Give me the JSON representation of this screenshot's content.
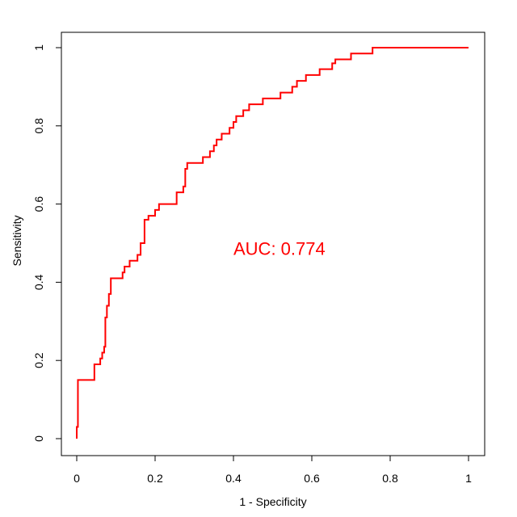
{
  "chart_data": {
    "type": "line",
    "title": "",
    "xlabel": "1 - Specificity",
    "ylabel": "Sensitivity",
    "xlim": [
      0,
      1
    ],
    "ylim": [
      0,
      1
    ],
    "x_ticks": [
      0,
      0.2,
      0.4,
      0.6,
      0.8,
      1
    ],
    "x_tick_labels": [
      "0",
      "0.2",
      "0.4",
      "0.6",
      "0.8",
      "1"
    ],
    "y_ticks": [
      0,
      0.2,
      0.4,
      0.6,
      0.8,
      1
    ],
    "y_tick_labels": [
      "0",
      "0.2",
      "0.4",
      "0.6",
      "0.8",
      "1"
    ],
    "grid": false,
    "line_color": "#ff0000",
    "annotation": {
      "text": "AUC: 0.774",
      "x": 0.4,
      "y": 0.47
    },
    "series": [
      {
        "color": "#ff0000",
        "step": true,
        "points": [
          [
            0,
            0
          ],
          [
            0,
            0.03
          ],
          [
            0.003,
            0.03
          ],
          [
            0.003,
            0.15
          ],
          [
            0.045,
            0.15
          ],
          [
            0.045,
            0.19
          ],
          [
            0.06,
            0.19
          ],
          [
            0.06,
            0.205
          ],
          [
            0.065,
            0.205
          ],
          [
            0.065,
            0.22
          ],
          [
            0.07,
            0.22
          ],
          [
            0.07,
            0.235
          ],
          [
            0.073,
            0.235
          ],
          [
            0.073,
            0.31
          ],
          [
            0.077,
            0.31
          ],
          [
            0.077,
            0.34
          ],
          [
            0.082,
            0.34
          ],
          [
            0.082,
            0.37
          ],
          [
            0.087,
            0.37
          ],
          [
            0.087,
            0.41
          ],
          [
            0.117,
            0.41
          ],
          [
            0.117,
            0.425
          ],
          [
            0.122,
            0.425
          ],
          [
            0.122,
            0.44
          ],
          [
            0.135,
            0.44
          ],
          [
            0.135,
            0.455
          ],
          [
            0.155,
            0.455
          ],
          [
            0.155,
            0.47
          ],
          [
            0.163,
            0.47
          ],
          [
            0.163,
            0.5
          ],
          [
            0.173,
            0.5
          ],
          [
            0.173,
            0.56
          ],
          [
            0.183,
            0.56
          ],
          [
            0.183,
            0.57
          ],
          [
            0.2,
            0.57
          ],
          [
            0.2,
            0.585
          ],
          [
            0.21,
            0.585
          ],
          [
            0.21,
            0.6
          ],
          [
            0.255,
            0.6
          ],
          [
            0.255,
            0.63
          ],
          [
            0.272,
            0.63
          ],
          [
            0.272,
            0.645
          ],
          [
            0.277,
            0.645
          ],
          [
            0.277,
            0.69
          ],
          [
            0.282,
            0.69
          ],
          [
            0.282,
            0.705
          ],
          [
            0.322,
            0.705
          ],
          [
            0.322,
            0.72
          ],
          [
            0.34,
            0.72
          ],
          [
            0.34,
            0.735
          ],
          [
            0.35,
            0.735
          ],
          [
            0.35,
            0.75
          ],
          [
            0.357,
            0.75
          ],
          [
            0.357,
            0.765
          ],
          [
            0.37,
            0.765
          ],
          [
            0.37,
            0.78
          ],
          [
            0.39,
            0.78
          ],
          [
            0.39,
            0.795
          ],
          [
            0.4,
            0.795
          ],
          [
            0.4,
            0.81
          ],
          [
            0.407,
            0.81
          ],
          [
            0.407,
            0.825
          ],
          [
            0.425,
            0.825
          ],
          [
            0.425,
            0.84
          ],
          [
            0.44,
            0.84
          ],
          [
            0.44,
            0.855
          ],
          [
            0.475,
            0.855
          ],
          [
            0.475,
            0.87
          ],
          [
            0.52,
            0.87
          ],
          [
            0.52,
            0.885
          ],
          [
            0.55,
            0.885
          ],
          [
            0.55,
            0.9
          ],
          [
            0.562,
            0.9
          ],
          [
            0.562,
            0.915
          ],
          [
            0.585,
            0.915
          ],
          [
            0.585,
            0.93
          ],
          [
            0.62,
            0.93
          ],
          [
            0.62,
            0.945
          ],
          [
            0.652,
            0.945
          ],
          [
            0.652,
            0.96
          ],
          [
            0.66,
            0.96
          ],
          [
            0.66,
            0.97
          ],
          [
            0.7,
            0.97
          ],
          [
            0.7,
            0.985
          ],
          [
            0.755,
            0.985
          ],
          [
            0.755,
            1
          ],
          [
            1,
            1
          ]
        ]
      }
    ]
  }
}
